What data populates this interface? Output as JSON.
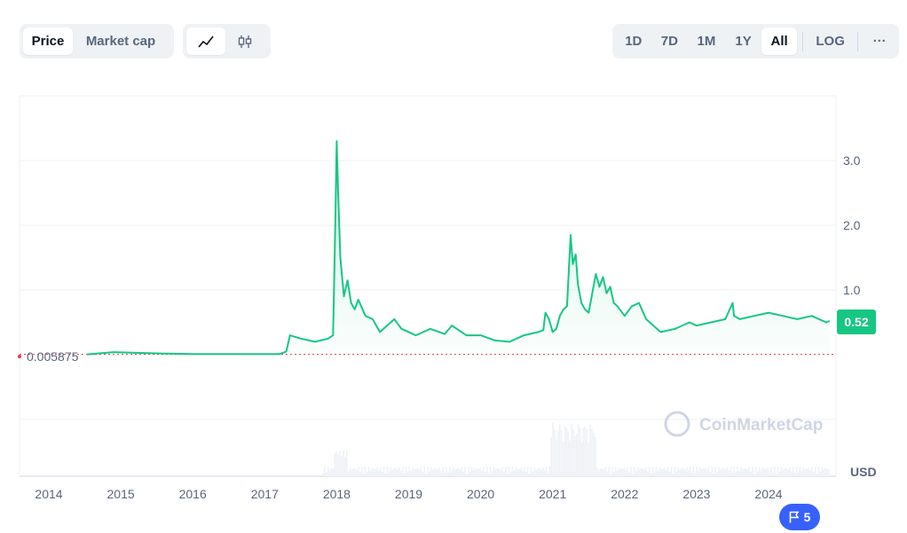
{
  "toolbar": {
    "metric_tabs": [
      {
        "label": "Price",
        "active": true
      },
      {
        "label": "Market cap",
        "active": false
      }
    ],
    "chart_type_icons": [
      "line-chart-icon",
      "candlestick-icon"
    ],
    "ranges": [
      {
        "label": "1D",
        "active": false
      },
      {
        "label": "7D",
        "active": false
      },
      {
        "label": "1M",
        "active": false
      },
      {
        "label": "1Y",
        "active": false
      },
      {
        "label": "All",
        "active": true
      }
    ],
    "log_label": "LOG",
    "more_label": "···"
  },
  "watermark": "CoinMarketCap",
  "currency_label": "USD",
  "events_flag": {
    "count": "5",
    "icon": "flag-icon"
  },
  "colors": {
    "line": "#16c784",
    "baseline": "#ea3943",
    "current_badge": "#16c784",
    "flag": "#3861fb"
  },
  "chart_data": {
    "type": "area",
    "title": "",
    "xlabel": "",
    "ylabel": "",
    "x_ticks": [
      "2014",
      "2015",
      "2016",
      "2017",
      "2018",
      "2019",
      "2020",
      "2021",
      "2022",
      "2023",
      "2024"
    ],
    "y_ticks": [
      "1.0",
      "2.0",
      "3.0"
    ],
    "ylim": [
      -0.6,
      4.0
    ],
    "baseline_value": 0.005875,
    "baseline_label": "0.005875",
    "current_value": 0.52,
    "current_label": "0.52",
    "grid": true,
    "series": [
      {
        "x": [
          2014.53,
          2014.9,
          2015.5,
          2016.0,
          2016.5,
          2017.0,
          2017.2,
          2017.3,
          2017.35,
          2017.5,
          2017.7,
          2017.88,
          2017.95,
          2017.98,
          2018.0,
          2018.02,
          2018.05,
          2018.1,
          2018.15,
          2018.2,
          2018.25,
          2018.3,
          2018.4,
          2018.5,
          2018.6,
          2018.7,
          2018.8,
          2018.9,
          2019.0,
          2019.1,
          2019.3,
          2019.5,
          2019.6,
          2019.8,
          2020.0,
          2020.2,
          2020.4,
          2020.6,
          2020.8,
          2020.87,
          2020.9,
          2020.95,
          2021.0,
          2021.05,
          2021.1,
          2021.15,
          2021.2,
          2021.25,
          2021.28,
          2021.32,
          2021.35,
          2021.4,
          2021.45,
          2021.5,
          2021.6,
          2021.65,
          2021.7,
          2021.75,
          2021.8,
          2021.85,
          2021.9,
          2022.0,
          2022.1,
          2022.2,
          2022.3,
          2022.4,
          2022.5,
          2022.7,
          2022.9,
          2023.0,
          2023.2,
          2023.4,
          2023.5,
          2023.52,
          2023.6,
          2023.8,
          2024.0,
          2024.2,
          2024.4,
          2024.6,
          2024.8,
          2024.85
        ],
        "y": [
          0.005875,
          0.04,
          0.02,
          0.01,
          0.01,
          0.01,
          0.01,
          0.05,
          0.3,
          0.25,
          0.2,
          0.25,
          0.3,
          2.0,
          3.3,
          2.5,
          1.5,
          0.9,
          1.15,
          0.8,
          0.7,
          0.85,
          0.6,
          0.55,
          0.35,
          0.45,
          0.55,
          0.4,
          0.35,
          0.3,
          0.4,
          0.32,
          0.45,
          0.3,
          0.3,
          0.22,
          0.2,
          0.3,
          0.35,
          0.38,
          0.65,
          0.55,
          0.35,
          0.4,
          0.6,
          0.7,
          0.75,
          1.85,
          1.4,
          1.55,
          1.1,
          0.8,
          0.7,
          0.65,
          1.25,
          1.05,
          1.2,
          0.95,
          1.05,
          0.8,
          0.75,
          0.6,
          0.75,
          0.8,
          0.55,
          0.45,
          0.35,
          0.4,
          0.5,
          0.45,
          0.5,
          0.55,
          0.8,
          0.6,
          0.55,
          0.6,
          0.65,
          0.6,
          0.55,
          0.6,
          0.5,
          0.52
        ]
      }
    ],
    "volume_shown": true
  }
}
